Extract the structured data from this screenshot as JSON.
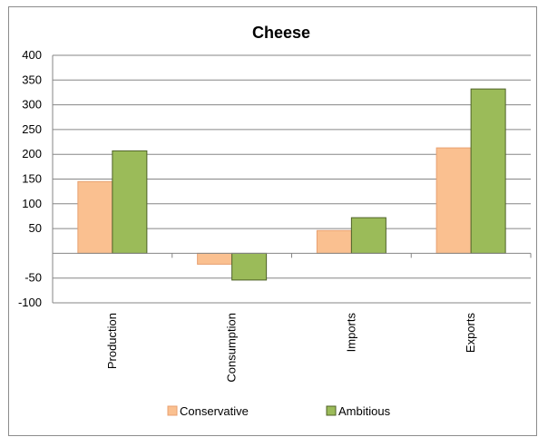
{
  "chart_data": {
    "type": "bar",
    "title": "Cheese",
    "categories": [
      "Production",
      "Consumption",
      "Imports",
      "Exports"
    ],
    "series": [
      {
        "name": "Conservative",
        "values": [
          145,
          -22,
          46,
          213
        ],
        "color": "#fac090",
        "stroke": "#e8a070"
      },
      {
        "name": "Ambitious",
        "values": [
          207,
          -54,
          72,
          332
        ],
        "color": "#9bbb59",
        "stroke": "#4f6228"
      }
    ],
    "ylim": [
      -100,
      400
    ],
    "yticks": [
      400,
      350,
      300,
      250,
      200,
      150,
      100,
      50,
      -50,
      -100
    ],
    "xlabel": "",
    "ylabel": "",
    "grid": true,
    "legend": "bottom",
    "gridline_color": "#868686"
  }
}
